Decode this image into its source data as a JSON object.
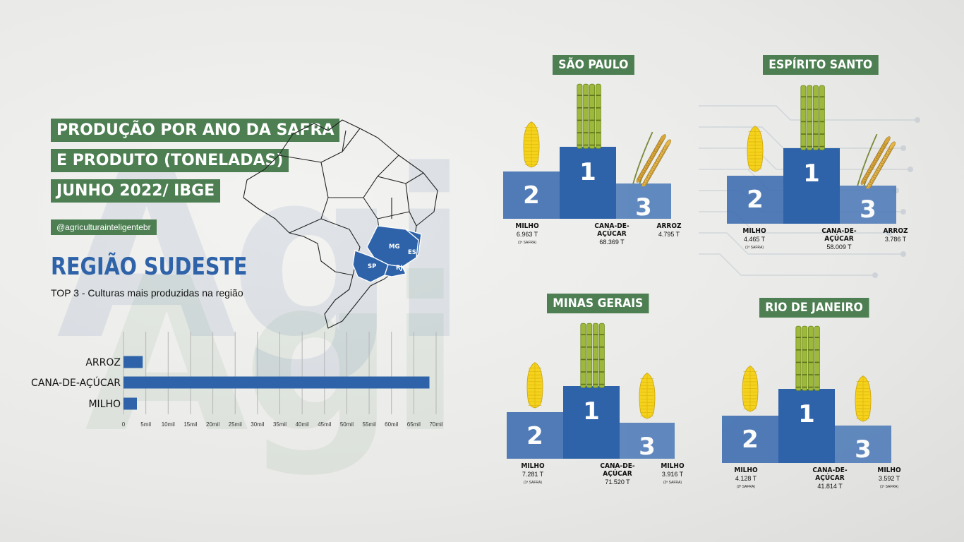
{
  "header": {
    "title_lines": [
      "PRODUÇÃO POR ANO DA SAFRA",
      "E PRODUTO (TONELADAS)",
      "JUNHO 2022/ IBGE"
    ],
    "handle": "@agriculturainteligentebr"
  },
  "region": {
    "title": "REGIÃO SUDESTE",
    "subtitle": "TOP 3 - Culturas mais produzidas na região"
  },
  "map": {
    "labels": [
      "MG",
      "ES",
      "SP",
      "RJ"
    ],
    "highlight_color": "#2e63a9"
  },
  "colors": {
    "blue": "#2e63a9",
    "green": "#4d7f52"
  },
  "chart_data": {
    "type": "bar",
    "orientation": "horizontal",
    "categories": [
      "ARROZ",
      "CANA-DE-AÇÚCAR",
      "MILHO"
    ],
    "values": [
      4.3,
      68.5,
      3.0
    ],
    "xlim": [
      0,
      70
    ],
    "ticks": [
      "0",
      "5mil",
      "10mil",
      "15mil",
      "20mil",
      "25mil",
      "30mil",
      "35mil",
      "40mil",
      "45mil",
      "50mil",
      "55mil",
      "60mil",
      "65mil",
      "70mil"
    ],
    "grid": true,
    "title": "",
    "xlabel": "",
    "ylabel": ""
  },
  "states": [
    {
      "name": "SÃO PAULO",
      "places": [
        {
          "rank": "2",
          "crop": "MILHO",
          "value": "6.963 T",
          "safra": "(1ª SAFRA)",
          "icon": "corn-icon"
        },
        {
          "rank": "1",
          "crop": "CANA-DE-AÇÚCAR",
          "value": "68.369 T",
          "safra": "",
          "icon": "sugarcane-icon"
        },
        {
          "rank": "3",
          "crop": "ARROZ",
          "value": "4.795 T",
          "safra": "",
          "icon": "rice-icon"
        }
      ]
    },
    {
      "name": "ESPÍRITO SANTO",
      "places": [
        {
          "rank": "2",
          "crop": "MILHO",
          "value": "4.465 T",
          "safra": "(1ª SAFRA)",
          "icon": "corn-icon"
        },
        {
          "rank": "1",
          "crop": "CANA-DE-AÇÚCAR",
          "value": "58.009 T",
          "safra": "",
          "icon": "sugarcane-icon"
        },
        {
          "rank": "3",
          "crop": "ARROZ",
          "value": "3.786 T",
          "safra": "",
          "icon": "rice-icon"
        }
      ]
    },
    {
      "name": "MINAS GERAIS",
      "places": [
        {
          "rank": "2",
          "crop": "MILHO",
          "value": "7.281 T",
          "safra": "(1ª SAFRA)",
          "icon": "corn-icon"
        },
        {
          "rank": "1",
          "crop": "CANA-DE-AÇÚCAR",
          "value": "71.520 T",
          "safra": "",
          "icon": "sugarcane-icon"
        },
        {
          "rank": "3",
          "crop": "MILHO",
          "value": "3.916 T",
          "safra": "(2ª SAFRA)",
          "icon": "corn-icon"
        }
      ]
    },
    {
      "name": "RIO DE JANEIRO",
      "places": [
        {
          "rank": "2",
          "crop": "MILHO",
          "value": "4.128 T",
          "safra": "(2ª SAFRA)",
          "icon": "corn-icon"
        },
        {
          "rank": "1",
          "crop": "CANA-DE-AÇÚCAR",
          "value": "41.814 T",
          "safra": "",
          "icon": "sugarcane-icon"
        },
        {
          "rank": "3",
          "crop": "MILHO",
          "value": "3.592 T",
          "safra": "(1ª SAFRA)",
          "icon": "corn-icon"
        }
      ]
    }
  ]
}
